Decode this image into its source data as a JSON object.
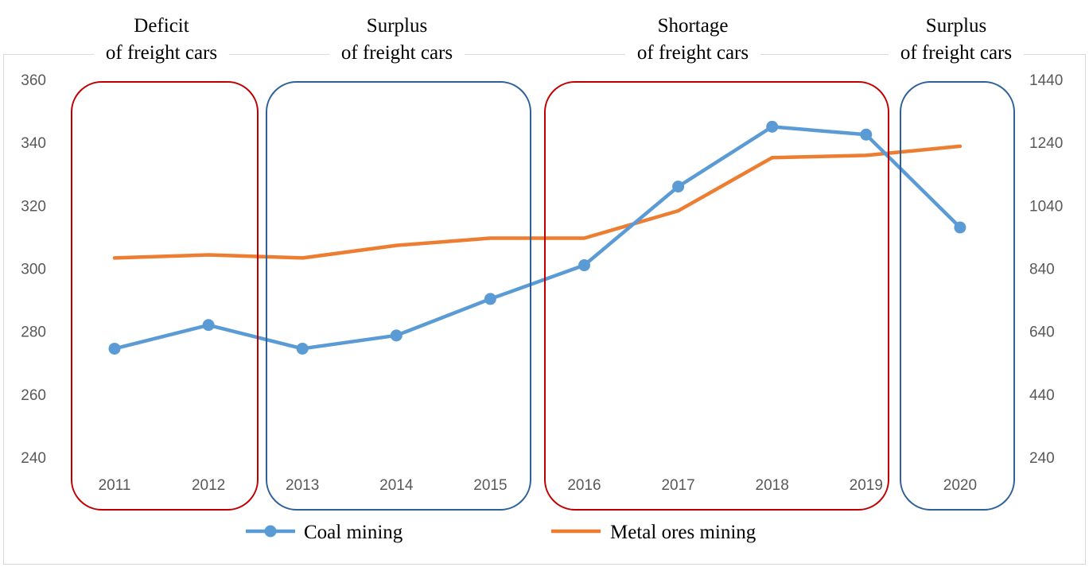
{
  "chart_data": {
    "type": "line",
    "categories": [
      "2011",
      "2012",
      "2013",
      "2014",
      "2015",
      "2016",
      "2017",
      "2018",
      "2019",
      "2020"
    ],
    "y_left": {
      "ylim": [
        240,
        360
      ],
      "ticks": [
        "360",
        "340",
        "320",
        "300",
        "280",
        "260",
        "240"
      ]
    },
    "y_right": {
      "ylim": [
        240,
        1440
      ],
      "ticks": [
        "1440",
        "1240",
        "1040",
        "840",
        "640",
        "440",
        "240"
      ]
    },
    "series": [
      {
        "name": "Coal mining",
        "axis": "left",
        "color": "#5b9bd5",
        "marker": "circle",
        "values": [
          274.5,
          282,
          274.5,
          278.7,
          290.3,
          301,
          326,
          345,
          342.5,
          313
        ]
      },
      {
        "name": "Metal ores mining",
        "axis": "right",
        "color": "#ed7d31",
        "marker": "none",
        "values": [
          873,
          883,
          873,
          913,
          936,
          936,
          1023,
          1192,
          1199,
          1228
        ]
      }
    ],
    "periods": [
      {
        "line1": "Deficit",
        "line2": "of freight cars",
        "color": "#c00000",
        "from": "2011",
        "to": "2012"
      },
      {
        "line1": "Surplus",
        "line2": "of freight cars",
        "color": "#2e6199",
        "from": "2013",
        "to": "2015"
      },
      {
        "line1": "Shortage",
        "line2": "of freight cars",
        "color": "#c00000",
        "from": "2016",
        "to": "2019"
      },
      {
        "line1": "Surplus",
        "line2": "of freight cars",
        "color": "#2e6199",
        "from": "2020",
        "to": "2020"
      }
    ],
    "legend_position": "bottom",
    "grid": false
  }
}
